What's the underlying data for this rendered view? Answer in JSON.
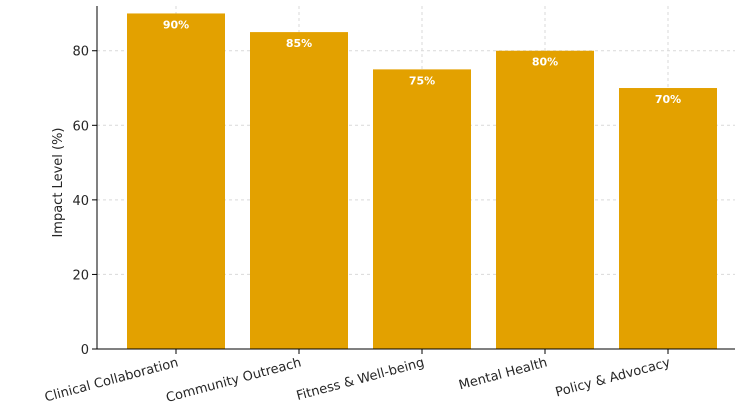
{
  "chart_data": {
    "type": "bar",
    "categories": [
      "Clinical Collaboration",
      "Community Outreach",
      "Fitness & Well-being",
      "Mental Health",
      "Policy & Advocacy"
    ],
    "values": [
      90,
      85,
      75,
      80,
      70
    ],
    "data_labels": [
      "90%",
      "85%",
      "75%",
      "80%",
      "70%"
    ],
    "title": "",
    "xlabel": "",
    "ylabel": "Impact Level (%)",
    "ylim": [
      0,
      92
    ],
    "yticks": [
      0,
      20,
      40,
      60,
      80
    ],
    "grid": true,
    "legend": "none",
    "colors": {
      "bar": "#E3A100",
      "grid": "#d9d9d9",
      "axis": "#000000"
    }
  }
}
